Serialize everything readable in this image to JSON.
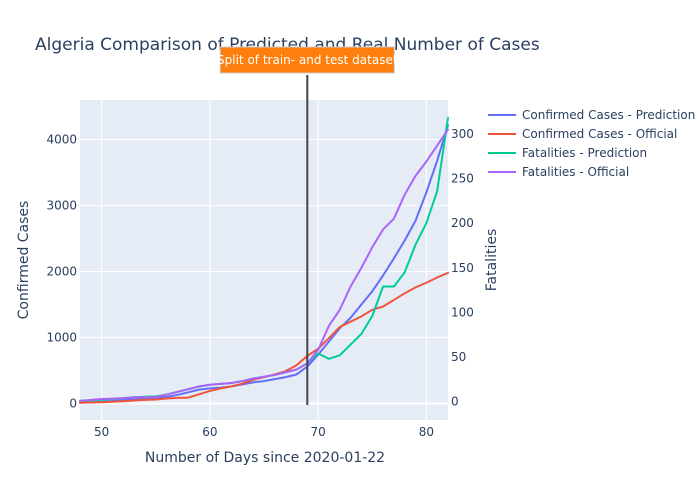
{
  "chart_data": {
    "type": "line",
    "title": "Algeria Comparison of Predicted and Real Number of Cases",
    "xlabel": "Number of Days since 2020-01-22",
    "ylabel": "Confirmed Cases",
    "y2label": "Fatalities",
    "xlim": [
      48,
      82
    ],
    "ylim": [
      -250,
      4600
    ],
    "y2lim": [
      -20.5,
      338
    ],
    "x_ticks": [
      50,
      60,
      70,
      80
    ],
    "y_ticks": [
      0,
      1000,
      2000,
      3000,
      4000
    ],
    "y2_ticks": [
      0,
      50,
      100,
      150,
      200,
      250,
      300
    ],
    "grid": true,
    "legend_position": "right",
    "annotation": {
      "text": "Split of train- and test dataset",
      "x": 69,
      "color": "#ff7f0e"
    },
    "series": [
      {
        "name": "Confirmed Cases - Prediction",
        "axis": "y",
        "color": "#636efa",
        "x": [
          48,
          49,
          50,
          51,
          52,
          53,
          54,
          55,
          56,
          57,
          58,
          59,
          60,
          61,
          62,
          63,
          64,
          65,
          66,
          67,
          68,
          69,
          70,
          71,
          72,
          73,
          74,
          75,
          76,
          77,
          78,
          79,
          80,
          81,
          82
        ],
        "values": [
          12,
          17,
          24,
          38,
          55,
          65,
          70,
          72,
          100,
          130,
          170,
          210,
          230,
          240,
          260,
          290,
          320,
          340,
          370,
          400,
          440,
          560,
          740,
          940,
          1140,
          1300,
          1500,
          1700,
          1940,
          2200,
          2470,
          2770,
          3200,
          3680,
          4220
        ]
      },
      {
        "name": "Confirmed Cases - Official",
        "axis": "y",
        "color": "#ef553b",
        "x": [
          48,
          49,
          50,
          51,
          52,
          53,
          54,
          55,
          56,
          57,
          58,
          59,
          60,
          61,
          62,
          63,
          64,
          65,
          66,
          67,
          68,
          69,
          70,
          71,
          72,
          73,
          74,
          75,
          76,
          77,
          78,
          79,
          80,
          81,
          82
        ],
        "values": [
          12,
          17,
          20,
          26,
          35,
          45,
          55,
          60,
          75,
          85,
          90,
          140,
          190,
          230,
          260,
          300,
          360,
          400,
          440,
          490,
          580,
          720,
          830,
          990,
          1160,
          1240,
          1320,
          1420,
          1470,
          1570,
          1670,
          1760,
          1830,
          1910,
          1980
        ]
      },
      {
        "name": "Fatalities - Prediction",
        "axis": "y2",
        "color": "#00cc96",
        "x": [
          48,
          49,
          50,
          51,
          52,
          53,
          54,
          55,
          56,
          57,
          58,
          59,
          60,
          61,
          62,
          63,
          64,
          65,
          66,
          67,
          68,
          69,
          70,
          71,
          72,
          73,
          74,
          75,
          76,
          77,
          78,
          79,
          80,
          81,
          82
        ],
        "values": [
          1,
          1.5,
          2,
          3,
          4,
          5,
          5.5,
          6,
          8,
          11,
          14,
          17,
          19,
          20,
          21,
          23,
          26,
          28,
          30,
          33,
          36,
          43,
          54,
          48,
          52,
          64,
          76,
          96,
          129,
          129,
          145,
          176,
          200,
          236,
          318
        ]
      },
      {
        "name": "Fatalities - Official",
        "axis": "y2",
        "color": "#ab63fa",
        "x": [
          48,
          49,
          50,
          51,
          52,
          53,
          54,
          55,
          56,
          57,
          58,
          59,
          60,
          61,
          62,
          63,
          64,
          65,
          66,
          67,
          68,
          69,
          70,
          71,
          72,
          73,
          74,
          75,
          76,
          77,
          78,
          79,
          80,
          81,
          82
        ],
        "values": [
          1,
          2,
          3,
          3.5,
          4,
          5,
          5,
          5,
          8,
          11,
          14,
          17,
          19,
          20,
          21,
          23,
          26,
          28,
          30,
          33,
          36,
          43,
          58,
          85,
          103,
          129,
          150,
          173,
          193,
          205,
          232,
          253,
          269,
          287,
          305
        ]
      }
    ]
  }
}
